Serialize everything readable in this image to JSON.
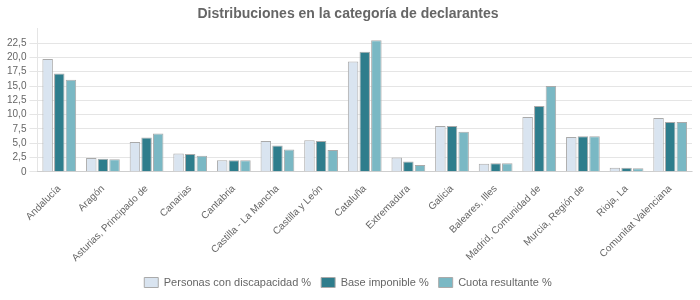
{
  "chart_data": {
    "type": "bar",
    "title": "Distribuciones en la categoría de declarantes",
    "categories": [
      "Andalucía",
      "Aragón",
      "Asturias, Principado de",
      "Canarias",
      "Cantabria",
      "Castilla - La Mancha",
      "Castilla y León",
      "Cataluña",
      "Extremadura",
      "Galicia",
      "Baleares, Illes",
      "Madrid, Comunidad de",
      "Murcia, Región de",
      "Rioja, La",
      "Comunitat Valenciana"
    ],
    "series": [
      {
        "name": "Personas con discapacidad %",
        "color": "#d9e4f0",
        "values": [
          19.7,
          2.4,
          5.2,
          3.2,
          2.0,
          5.4,
          5.5,
          19.3,
          2.5,
          8.0,
          1.4,
          9.6,
          6.1,
          0.7,
          9.4
        ]
      },
      {
        "name": "Base imponible %",
        "color": "#2e7d8c",
        "values": [
          17.2,
          2.3,
          6.0,
          3.1,
          2.0,
          4.6,
          5.4,
          21.0,
          1.8,
          8.0,
          1.5,
          11.5,
          6.2,
          0.7,
          8.7
        ]
      },
      {
        "name": "Cuota resultante %",
        "color": "#7ab8c4",
        "values": [
          16.1,
          2.2,
          6.7,
          2.8,
          2.0,
          3.9,
          3.8,
          23.0,
          1.2,
          7.0,
          1.5,
          15.0,
          6.2,
          0.6,
          8.7
        ]
      }
    ],
    "ylim": [
      0,
      25
    ],
    "yticks": [
      0,
      {
        "value": 2.5,
        "label": "2,5"
      },
      {
        "value": 5.0,
        "label": "5,0"
      },
      {
        "value": 7.5,
        "label": "7,5"
      },
      {
        "value": 10.0,
        "label": "10,0"
      },
      {
        "value": 12.5,
        "label": "12,5"
      },
      {
        "value": 15.0,
        "label": "15,0"
      },
      {
        "value": 17.5,
        "label": "17,5"
      },
      {
        "value": 20.0,
        "label": "20,0"
      },
      {
        "value": 22.5,
        "label": "22,5"
      }
    ],
    "grid": true,
    "legend": "bottom"
  }
}
